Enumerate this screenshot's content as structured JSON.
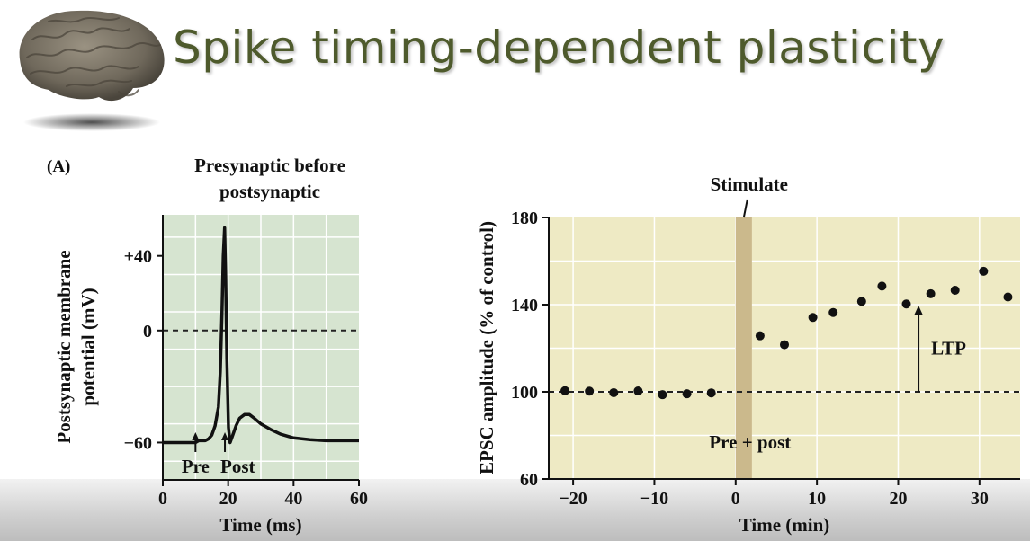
{
  "slide": {
    "title": "Spike timing-dependent plasticity",
    "title_color": "#4e5a2c"
  },
  "chart_data": [
    {
      "type": "line",
      "panel_label": "(A)",
      "title": "Presynaptic before postsynaptic",
      "title_lines": [
        "Presynaptic before",
        "postsynaptic"
      ],
      "xlabel": "Time (ms)",
      "ylabel": "Postsynaptic membrane potential (mV)",
      "ylabel_lines": [
        "Postsynaptic membrane",
        "potential (mV)"
      ],
      "xlim": [
        0,
        60
      ],
      "ylim": [
        -80,
        62
      ],
      "x_ticks": [
        0,
        20,
        40,
        60
      ],
      "x_tick_labels": [
        "0",
        "20",
        "40",
        "60"
      ],
      "y_ticks": [
        40,
        0,
        -60
      ],
      "y_tick_labels": [
        "+40",
        "0",
        "−60"
      ],
      "grid": true,
      "background_color": "#d6e4d0",
      "reference_line": {
        "y": 0,
        "style": "dashed"
      },
      "series": [
        {
          "x": [
            0,
            4,
            8,
            10,
            11,
            13,
            14,
            15,
            16,
            17,
            17.6,
            18.1,
            18.5,
            18.9,
            19.2,
            19.6,
            20.1,
            20.6,
            21.4,
            22.4,
            23.5,
            25,
            26.5,
            28,
            30,
            33,
            36,
            40,
            45,
            50,
            55,
            60
          ],
          "y": [
            -60,
            -60,
            -60,
            -60,
            -59,
            -59,
            -58,
            -56,
            -51,
            -41,
            -22,
            10,
            40,
            55,
            30,
            -15,
            -52,
            -60,
            -56,
            -51,
            -47,
            -45,
            -45,
            -47,
            -50,
            -53,
            -55.5,
            -57.5,
            -58.5,
            -59,
            -59,
            -59
          ]
        }
      ],
      "annotations": [
        {
          "text": "Pre",
          "x": 10
        },
        {
          "text": "Post",
          "x": 19
        }
      ]
    },
    {
      "type": "scatter",
      "xlabel": "Time (min)",
      "ylabel": "EPSC amplitude (% of control)",
      "xlim": [
        -23,
        35
      ],
      "ylim": [
        60,
        180
      ],
      "x_ticks": [
        -20,
        -10,
        0,
        10,
        20,
        30
      ],
      "x_tick_labels": [
        "−20",
        "−10",
        "0",
        "10",
        "20",
        "30"
      ],
      "y_ticks": [
        60,
        100,
        140,
        180
      ],
      "y_tick_labels": [
        "60",
        "100",
        "140",
        "180"
      ],
      "grid": true,
      "background_color": "#eeeac4",
      "stimulation_band": {
        "x_start": 0,
        "x_end": 2,
        "color": "#cbb98c"
      },
      "reference_line": {
        "y": 100,
        "style": "dashed"
      },
      "series": [
        {
          "x": [
            -21,
            -18,
            -15,
            -12,
            -9,
            -6,
            -3,
            3,
            6,
            9.5,
            12,
            15.5,
            18,
            21,
            24,
            27,
            30.5,
            33.5
          ],
          "y": [
            100.5,
            100.3,
            99.6,
            100.4,
            98.7,
            99.1,
            99.5,
            125.7,
            121.6,
            134.1,
            136.4,
            141.5,
            148.5,
            140.3,
            145,
            146.6,
            155.3,
            143.5
          ]
        }
      ],
      "annotations": [
        {
          "text": "Stimulate"
        },
        {
          "text": "Pre + post"
        },
        {
          "text": "LTP"
        }
      ]
    }
  ]
}
